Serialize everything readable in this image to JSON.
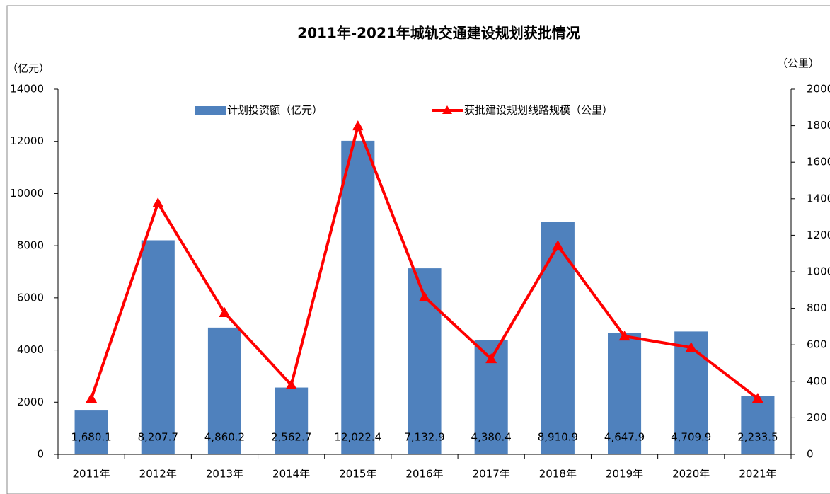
{
  "chart_data": {
    "type": "bar",
    "title": "2011年-2021年城轨交通建设规划获批情况",
    "y_label": "（亿元）",
    "y2_label": "（公里）",
    "categories": [
      "2011年",
      "2012年",
      "2013年",
      "2014年",
      "2015年",
      "2016年",
      "2017年",
      "2018年",
      "2019年",
      "2020年",
      "2021年"
    ],
    "series": [
      {
        "name": "计划投资额（亿元）",
        "type": "bar",
        "color": "#4f81bd",
        "values": [
          1680.1,
          8207.7,
          4860.2,
          2562.7,
          12022.4,
          7132.9,
          4380.4,
          8910.9,
          4647.9,
          4709.9,
          2233.5
        ],
        "value_labels": [
          "1,680.1",
          "8,207.7",
          "4,860.2",
          "2,562.7",
          "12,022.4",
          "7,132.9",
          "4,380.4",
          "8,910.9",
          "4,647.9",
          "4,709.9",
          "2,233.5"
        ]
      },
      {
        "name": "获批建设规划线路规模（公里）",
        "type": "line",
        "axis": "y2",
        "color": "#ff0000",
        "values": [
          306,
          1376,
          775,
          380,
          1798,
          862,
          523,
          1143,
          647,
          585,
          306
        ]
      }
    ],
    "ylim": [
      0,
      14000
    ],
    "yticks": [
      0,
      2000,
      4000,
      6000,
      8000,
      10000,
      12000,
      14000
    ],
    "y2lim": [
      0,
      2000
    ],
    "y2ticks": [
      0,
      200,
      400,
      600,
      800,
      1000,
      1200,
      1400,
      1600,
      1800,
      2000
    ],
    "legend": "top"
  }
}
